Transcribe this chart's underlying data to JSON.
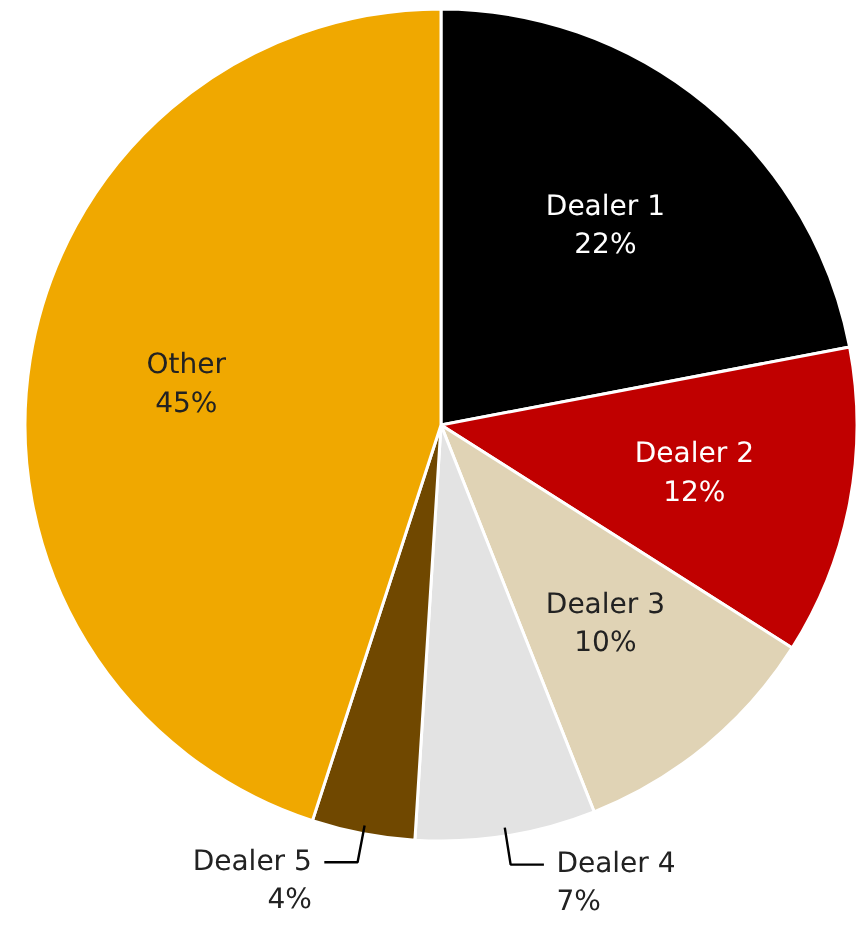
{
  "chart_data": {
    "type": "pie",
    "categories": [
      "Dealer 1",
      "Dealer 2",
      "Dealer 3",
      "Dealer 4",
      "Dealer 5",
      "Other"
    ],
    "values": [
      22,
      12,
      10,
      7,
      4,
      45
    ],
    "value_labels": [
      "22%",
      "12%",
      "10%",
      "7%",
      "4%",
      "45%"
    ],
    "colors": [
      "#000000",
      "#c00000",
      "#e0d3b5",
      "#e3e3e3",
      "#704800",
      "#f0a800"
    ]
  }
}
